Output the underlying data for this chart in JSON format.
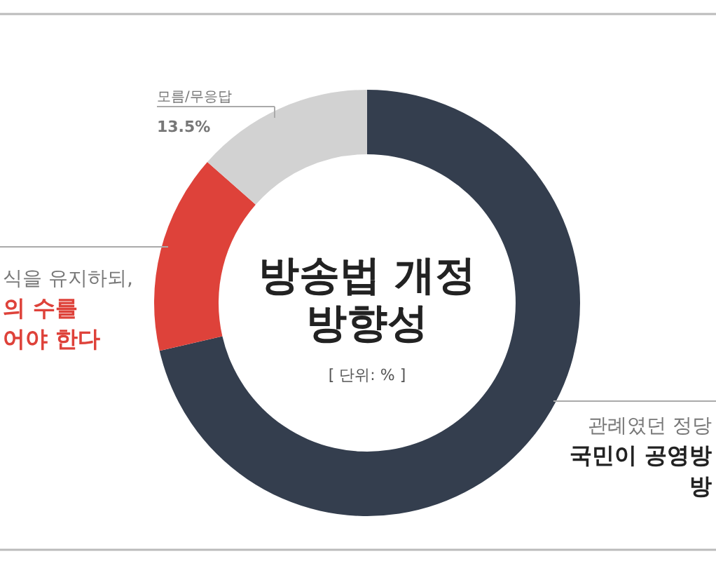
{
  "chart_data": {
    "type": "donut",
    "title": "방송법 개정\n방향성",
    "subtitle": "[ 단위: % ]",
    "categories": [
      "관례였던 정당\n국민이 공영방\n방",
      "식을 유지하되,\n의 수를\n어야 한다",
      "모름/무응답"
    ],
    "values": [
      71.4,
      15.1,
      13.5
    ],
    "colors": [
      "#343e4e",
      "#de423a",
      "#d2d2d2"
    ],
    "value_labels": [
      null,
      null,
      "13.5%"
    ]
  }
}
